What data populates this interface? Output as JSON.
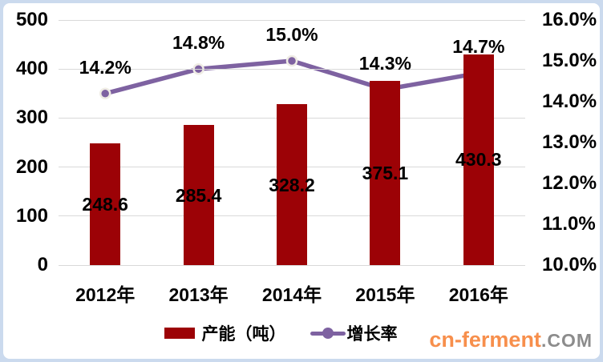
{
  "chart_data": {
    "type": "bar",
    "subtype": "bar+line-combo",
    "categories": [
      "2012年",
      "2013年",
      "2014年",
      "2015年",
      "2016年"
    ],
    "series": [
      {
        "name": "产能（吨）",
        "type": "bar",
        "axis": "left",
        "values": [
          248.6,
          285.4,
          328.2,
          375.1,
          430.3
        ],
        "labels": [
          "248.6",
          "285.4",
          "328.2",
          "375.1",
          "430.3"
        ],
        "color": "#9c0206"
      },
      {
        "name": "增长率",
        "type": "line",
        "axis": "right",
        "values": [
          14.2,
          14.8,
          15.0,
          14.3,
          14.7
        ],
        "labels": [
          "14.2%",
          "14.8%",
          "15.0%",
          "14.3%",
          "14.7%"
        ],
        "color": "#7e62a1"
      }
    ],
    "left_axis": {
      "min": 0,
      "max": 500,
      "step": 100,
      "ticks": [
        "0",
        "100",
        "200",
        "300",
        "400",
        "500"
      ]
    },
    "right_axis": {
      "min": 10,
      "max": 16,
      "step": 1,
      "ticks": [
        "10.0%",
        "11.0%",
        "12.0%",
        "13.0%",
        "14.0%",
        "15.0%",
        "16.0%"
      ]
    },
    "grid": true,
    "legend_position": "bottom",
    "title": ""
  },
  "legend": {
    "bar_label": "产能（吨）",
    "line_label": "增长率"
  },
  "watermark": {
    "main": "cn-ferment",
    "suffix": ".COM"
  },
  "colors": {
    "bar": "#9c0206",
    "line": "#7e62a1",
    "marker_ring": "#efece4",
    "grid": "#d9d9d9",
    "frame_border": "#cbdaee",
    "watermark_main": "#f78f4c",
    "watermark_suffix": "#8c8c8c",
    "text": "#000000"
  }
}
